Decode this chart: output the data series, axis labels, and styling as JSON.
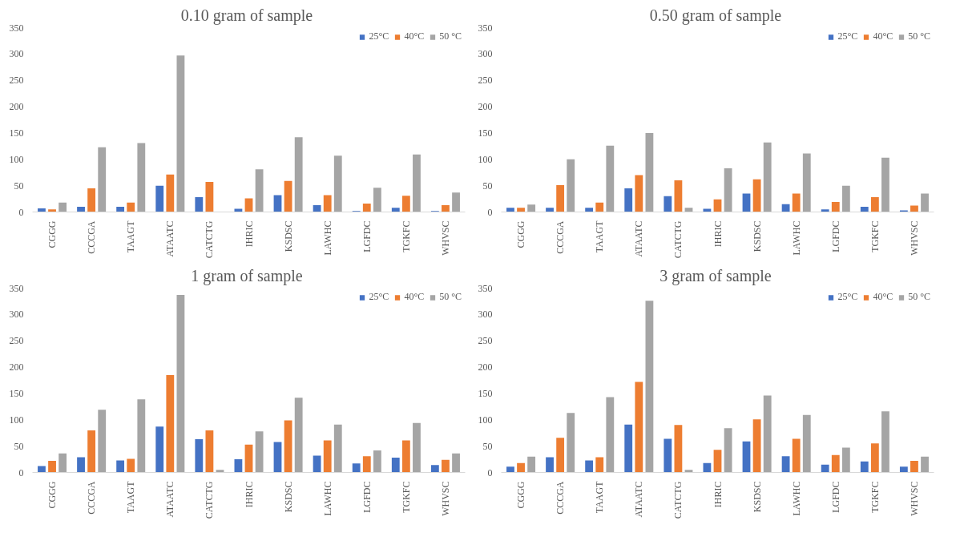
{
  "chart_data": [
    {
      "type": "bar",
      "title": "0.10 gram  of sample",
      "categories": [
        "CGGG",
        "CCCGA",
        "TAAGT",
        "ATAATC",
        "CATCTG",
        "IHRIC",
        "KSDSC",
        "LAWHC",
        "LGFDC",
        "TGKFC",
        "WHVSC"
      ],
      "ylim": [
        0,
        350
      ],
      "yticks": [
        0,
        50,
        100,
        150,
        200,
        250,
        300,
        350
      ],
      "grid": false,
      "legend": "top right",
      "series": [
        {
          "name": "25°C",
          "color": "#4472c4",
          "values": [
            7,
            10,
            10,
            50,
            28,
            6,
            32,
            13,
            2,
            8,
            2
          ]
        },
        {
          "name": "40°C",
          "color": "#ed7d31",
          "values": [
            5,
            45,
            18,
            71,
            57,
            26,
            59,
            32,
            16,
            31,
            13
          ]
        },
        {
          "name": "50 °C",
          "color": "#a5a5a5",
          "values": [
            18,
            123,
            131,
            297,
            null,
            81,
            142,
            107,
            46,
            109,
            37
          ]
        }
      ]
    },
    {
      "type": "bar",
      "title": "0.50 gram  of sample",
      "categories": [
        "CGGG",
        "CCCGA",
        "TAAGT",
        "ATAATC",
        "CATCTG",
        "IHRIC",
        "KSDSC",
        "LAWHC",
        "LGFDC",
        "TGKFC",
        "WHVSC"
      ],
      "ylim": [
        0,
        350
      ],
      "yticks": [
        0,
        50,
        100,
        150,
        200,
        250,
        300,
        350
      ],
      "grid": false,
      "legend": "top right",
      "series": [
        {
          "name": "25°C",
          "color": "#4472c4",
          "values": [
            8,
            8,
            8,
            45,
            30,
            6,
            35,
            15,
            5,
            10,
            3
          ]
        },
        {
          "name": "40°C",
          "color": "#ed7d31",
          "values": [
            8,
            51,
            18,
            70,
            60,
            24,
            62,
            35,
            19,
            28,
            12
          ]
        },
        {
          "name": "50 °C",
          "color": "#a5a5a5",
          "values": [
            14,
            100,
            126,
            150,
            8,
            83,
            132,
            111,
            50,
            103,
            35
          ]
        }
      ]
    },
    {
      "type": "bar",
      "title": "1 gram  of sample",
      "categories": [
        "CGGG",
        "CCCGA",
        "TAAGT",
        "ATAATC",
        "CATCTG",
        "IHRIC",
        "KSDSC",
        "LAWHC",
        "LGFDC",
        "TGKFC",
        "WHVSC"
      ],
      "ylim": [
        0,
        350
      ],
      "yticks": [
        0,
        50,
        100,
        150,
        200,
        250,
        300,
        350
      ],
      "grid": false,
      "legend": "top right",
      "series": [
        {
          "name": "25°C",
          "color": "#4472c4",
          "values": [
            12,
            29,
            23,
            87,
            63,
            25,
            58,
            32,
            17,
            28,
            14
          ]
        },
        {
          "name": "40°C",
          "color": "#ed7d31",
          "values": [
            22,
            80,
            26,
            185,
            80,
            53,
            99,
            61,
            31,
            61,
            24
          ]
        },
        {
          "name": "50 °C",
          "color": "#a5a5a5",
          "values": [
            36,
            119,
            139,
            337,
            5,
            78,
            142,
            91,
            42,
            94,
            36
          ]
        }
      ]
    },
    {
      "type": "bar",
      "title": "3 gram  of sample",
      "categories": [
        "CGGG",
        "CCCGA",
        "TAAGT",
        "ATAATC",
        "CATCTG",
        "IHRIC",
        "KSDSC",
        "LAWHC",
        "LGFDC",
        "TGKFC",
        "WHVSC"
      ],
      "ylim": [
        0,
        350
      ],
      "yticks": [
        0,
        50,
        100,
        150,
        200,
        250,
        300,
        350
      ],
      "grid": false,
      "legend": "top right",
      "series": [
        {
          "name": "25°C",
          "color": "#4472c4",
          "values": [
            11,
            29,
            23,
            91,
            64,
            18,
            59,
            31,
            15,
            21,
            11
          ]
        },
        {
          "name": "40°C",
          "color": "#ed7d31",
          "values": [
            18,
            66,
            29,
            172,
            90,
            43,
            101,
            64,
            33,
            55,
            22
          ]
        },
        {
          "name": "50 °C",
          "color": "#a5a5a5",
          "values": [
            30,
            113,
            143,
            326,
            5,
            84,
            146,
            109,
            47,
            116,
            30
          ]
        }
      ]
    }
  ]
}
